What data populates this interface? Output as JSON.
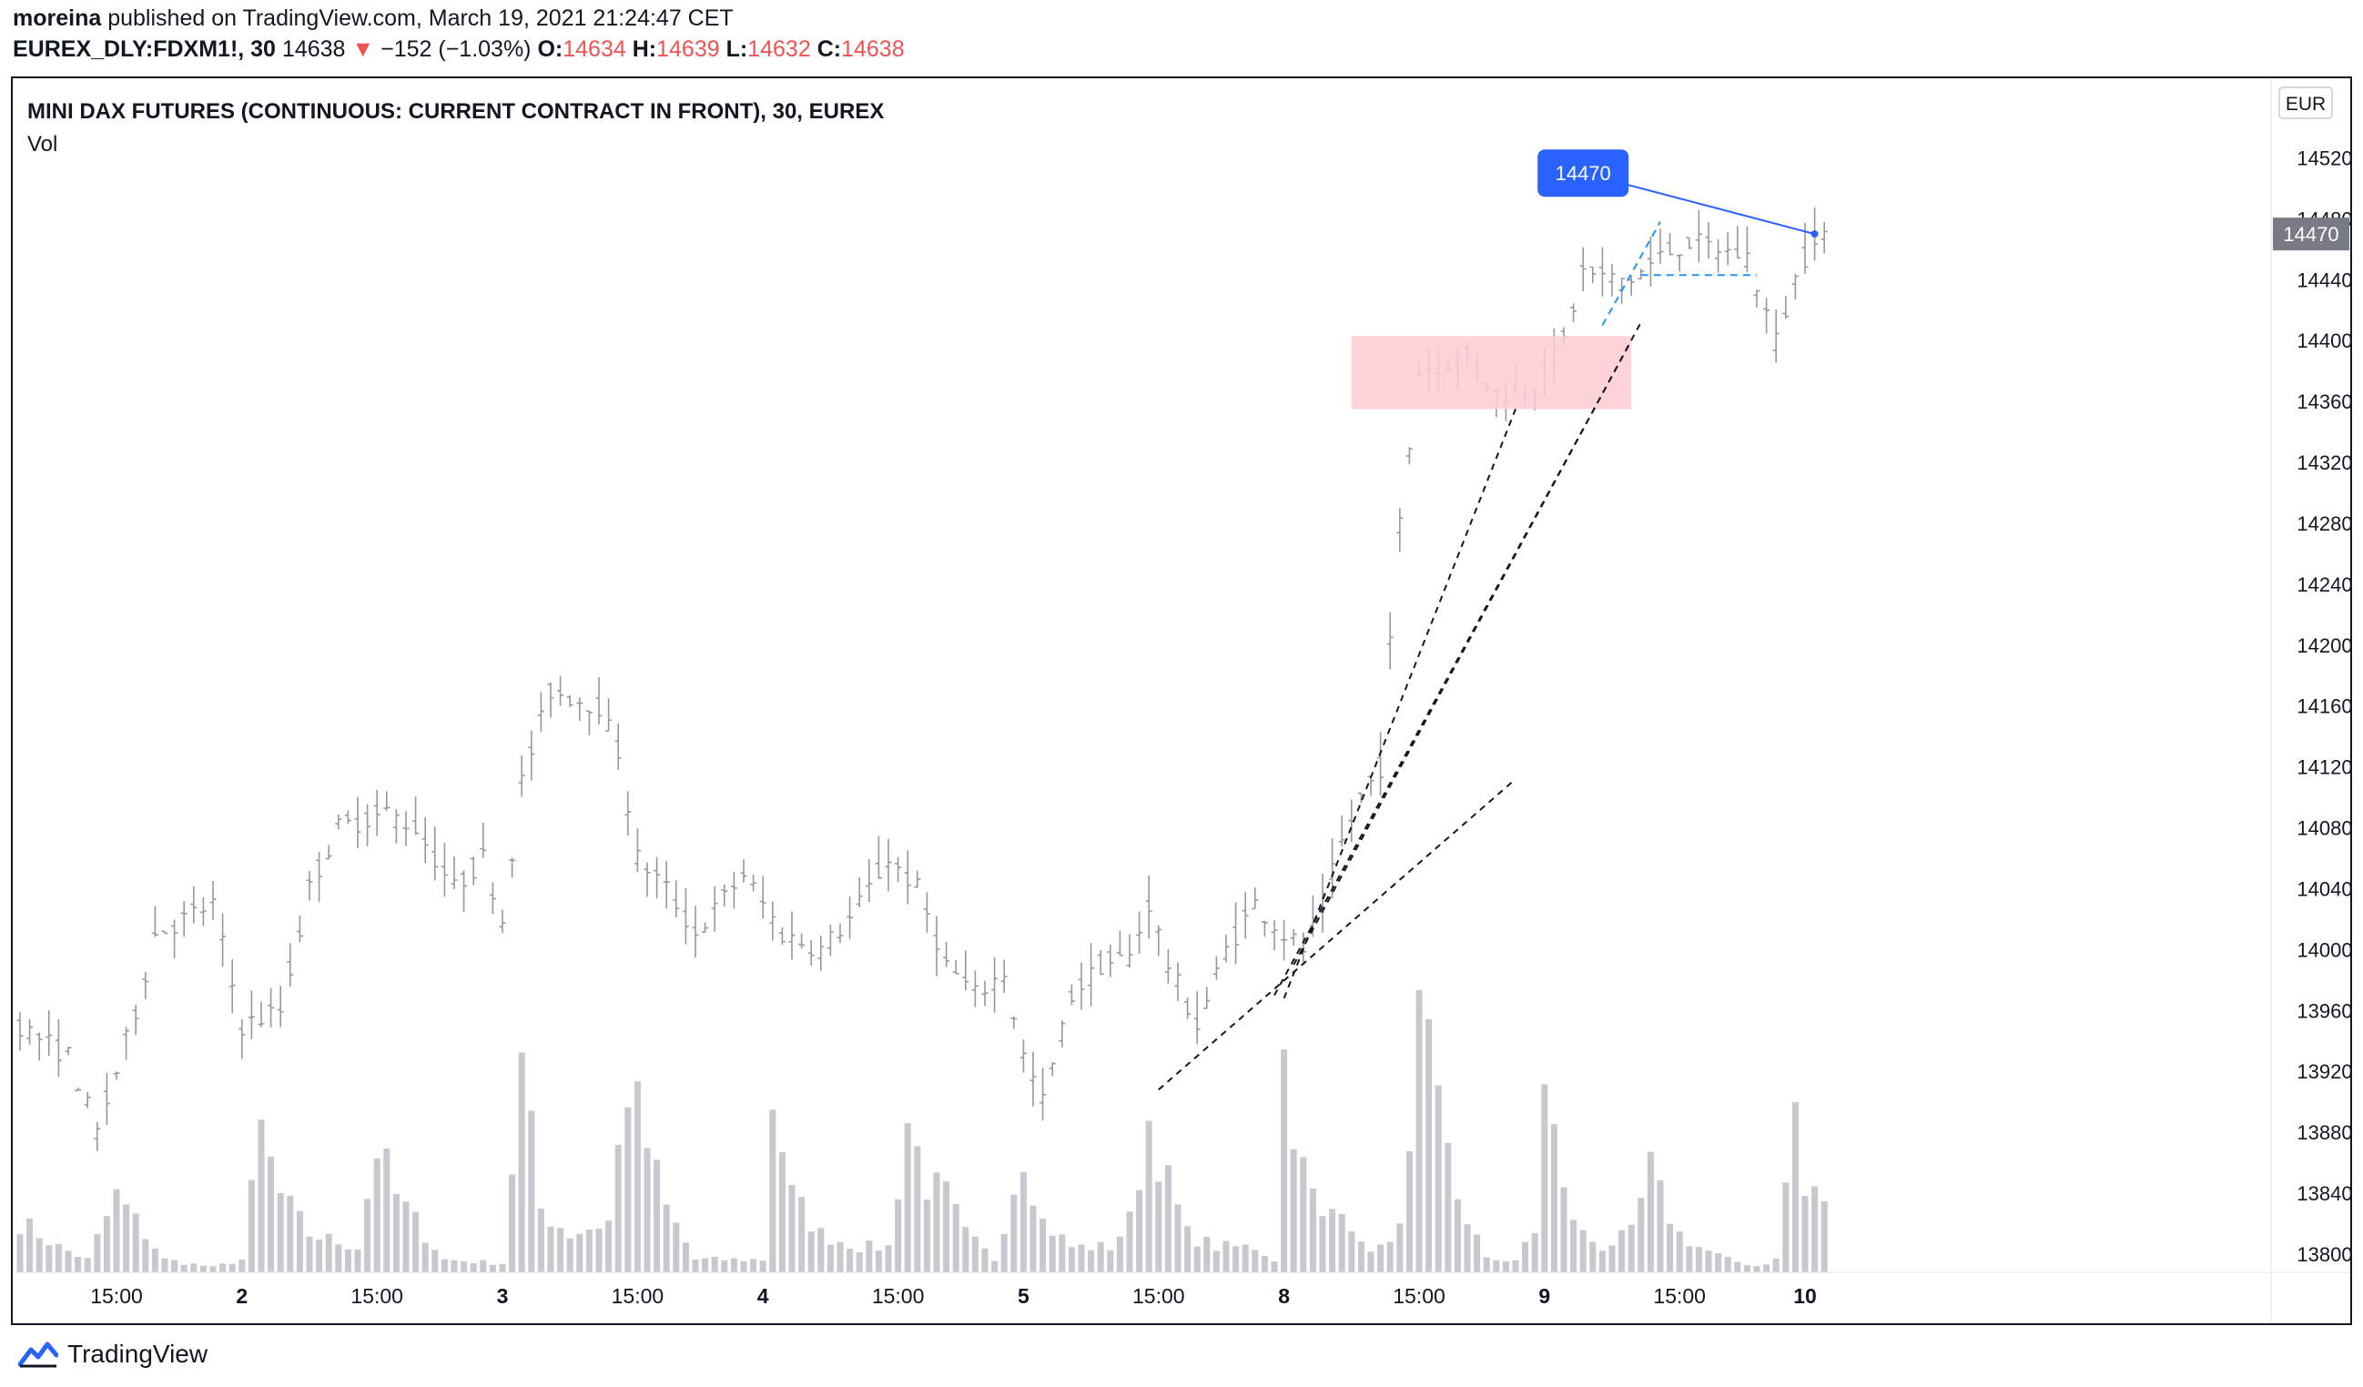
{
  "header": {
    "author": "moreina",
    "published_text": "published on TradingView.com, March 19, 2021 21:24:47 CET",
    "symbol_line": "EUREX_DLY:FDXM1!, 30",
    "last": "14638",
    "change": "−152 (−1.03%)",
    "o_label": "O:",
    "o": "14634",
    "h_label": "H:",
    "h": "14639",
    "l_label": "L:",
    "l": "14632",
    "c_label": "C:",
    "c": "14638"
  },
  "footer": {
    "brand": "TradingView"
  },
  "colors": {
    "down": "#ef5350",
    "accent": "#2962ff",
    "bar": "#9598a1",
    "volume": "#c8c9ce",
    "zone": "#ffcdd2"
  },
  "chart_data": {
    "type": "ohlc",
    "title": "MINI DAX FUTURES (CONTINUOUS: CURRENT CONTRACT IN FRONT), 30, EUREX",
    "volume_label": "Vol",
    "currency": "EUR",
    "ylim": [
      13800,
      14540
    ],
    "y_ticks": [
      14520,
      14480,
      14440,
      14400,
      14360,
      14320,
      14280,
      14240,
      14200,
      14160,
      14120,
      14080,
      14040,
      14000,
      13960,
      13920,
      13880,
      13840,
      13800
    ],
    "last_price_label": "14470",
    "callout_label": "14470",
    "x_tick_labels": [
      "15:00",
      "2",
      "15:00",
      "3",
      "15:00",
      "4",
      "15:00",
      "5",
      "15:00",
      "8",
      "15:00",
      "9",
      "15:00",
      "10"
    ],
    "x_tick_bar_index": [
      10,
      23,
      37,
      50,
      64,
      77,
      91,
      104,
      118,
      131,
      145,
      158,
      172,
      185
    ],
    "price_keypoints": [
      [
        0,
        13950
      ],
      [
        5,
        13930
      ],
      [
        8,
        13880
      ],
      [
        12,
        13960
      ],
      [
        14,
        14010
      ],
      [
        20,
        14030
      ],
      [
        23,
        13950
      ],
      [
        27,
        13960
      ],
      [
        30,
        14040
      ],
      [
        33,
        14080
      ],
      [
        38,
        14090
      ],
      [
        41,
        14080
      ],
      [
        45,
        14040
      ],
      [
        48,
        14060
      ],
      [
        50,
        14020
      ],
      [
        52,
        14110
      ],
      [
        55,
        14170
      ],
      [
        60,
        14160
      ],
      [
        62,
        14130
      ],
      [
        64,
        14060
      ],
      [
        67,
        14040
      ],
      [
        70,
        14010
      ],
      [
        75,
        14050
      ],
      [
        79,
        14010
      ],
      [
        83,
        14000
      ],
      [
        86,
        14020
      ],
      [
        90,
        14060
      ],
      [
        93,
        14040
      ],
      [
        96,
        13990
      ],
      [
        99,
        13970
      ],
      [
        102,
        13985
      ],
      [
        104,
        13930
      ],
      [
        106,
        13900
      ],
      [
        109,
        13970
      ],
      [
        112,
        13990
      ],
      [
        115,
        13995
      ],
      [
        117,
        14030
      ],
      [
        119,
        13990
      ],
      [
        122,
        13950
      ],
      [
        125,
        14000
      ],
      [
        128,
        14030
      ],
      [
        131,
        14010
      ],
      [
        133,
        14000
      ],
      [
        135,
        14030
      ],
      [
        137,
        14070
      ],
      [
        139,
        14100
      ],
      [
        141,
        14120
      ],
      [
        143,
        14280
      ],
      [
        145,
        14380
      ],
      [
        147,
        14385
      ],
      [
        150,
        14390
      ],
      [
        153,
        14365
      ],
      [
        155,
        14365
      ],
      [
        157,
        14370
      ],
      [
        160,
        14400
      ],
      [
        162,
        14445
      ],
      [
        165,
        14440
      ],
      [
        167,
        14440
      ],
      [
        170,
        14455
      ],
      [
        173,
        14465
      ],
      [
        176,
        14460
      ],
      [
        179,
        14455
      ],
      [
        182,
        14400
      ],
      [
        184,
        14440
      ],
      [
        186,
        14470
      ]
    ],
    "volume_profile": [
      [
        0,
        4
      ],
      [
        4,
        2
      ],
      [
        7,
        1
      ],
      [
        10,
        6
      ],
      [
        13,
        3
      ],
      [
        15,
        1
      ],
      [
        20,
        0.4
      ],
      [
        23,
        1
      ],
      [
        25,
        11
      ],
      [
        27,
        6
      ],
      [
        30,
        3
      ],
      [
        35,
        2
      ],
      [
        37,
        10
      ],
      [
        39,
        6
      ],
      [
        41,
        4
      ],
      [
        44,
        1
      ],
      [
        50,
        0.7
      ],
      [
        52,
        16
      ],
      [
        54,
        5
      ],
      [
        57,
        3
      ],
      [
        61,
        4
      ],
      [
        63,
        15
      ],
      [
        65,
        10
      ],
      [
        67,
        5
      ],
      [
        70,
        1
      ],
      [
        74,
        1
      ],
      [
        77,
        1
      ],
      [
        78,
        14
      ],
      [
        80,
        6
      ],
      [
        83,
        3
      ],
      [
        87,
        2
      ],
      [
        90,
        2
      ],
      [
        92,
        12
      ],
      [
        94,
        7
      ],
      [
        96,
        6
      ],
      [
        98,
        3
      ],
      [
        101,
        1
      ],
      [
        104,
        10
      ],
      [
        106,
        4
      ],
      [
        109,
        2
      ],
      [
        113,
        2
      ],
      [
        115,
        4
      ],
      [
        117,
        12
      ],
      [
        119,
        7
      ],
      [
        121,
        3
      ],
      [
        124,
        2
      ],
      [
        128,
        2
      ],
      [
        130,
        1
      ],
      [
        131,
        17
      ],
      [
        133,
        8
      ],
      [
        135,
        4
      ],
      [
        137,
        6
      ],
      [
        139,
        2
      ],
      [
        142,
        2
      ],
      [
        144,
        8
      ],
      [
        145,
        20
      ],
      [
        147,
        12
      ],
      [
        149,
        6
      ],
      [
        152,
        1
      ],
      [
        155,
        1
      ],
      [
        157,
        3
      ],
      [
        158,
        16
      ],
      [
        160,
        6
      ],
      [
        162,
        3
      ],
      [
        164,
        2
      ],
      [
        167,
        3
      ],
      [
        169,
        8
      ],
      [
        170,
        6
      ],
      [
        172,
        3
      ],
      [
        174,
        2
      ],
      [
        177,
        1
      ],
      [
        180,
        0.5
      ],
      [
        182,
        1
      ],
      [
        184,
        13
      ],
      [
        185,
        6
      ]
    ],
    "volume_max": 20,
    "drawings": [
      {
        "type": "rectangle",
        "name": "supply-zone",
        "x": [
          138,
          167
        ],
        "y": [
          14355,
          14403
        ]
      },
      {
        "type": "trendline",
        "name": "trendline-1",
        "x": [
          118,
          155
        ],
        "y": [
          13908,
          14112
        ]
      },
      {
        "type": "trendline",
        "name": "trendline-2",
        "x": [
          130,
          167
        ],
        "y": [
          13970,
          14400
        ]
      },
      {
        "type": "trendline",
        "name": "trendline-3",
        "x": [
          131,
          155
        ],
        "y": [
          13968,
          14355
        ]
      },
      {
        "type": "trendline",
        "name": "trendline-4",
        "x": [
          132,
          168
        ],
        "y": [
          13990,
          14412
        ]
      },
      {
        "type": "blue-dashed",
        "name": "projection-up",
        "x": [
          164,
          170
        ],
        "y": [
          14410,
          14478
        ]
      },
      {
        "type": "blue-dashed",
        "name": "projection-flat",
        "x": [
          168,
          180
        ],
        "y": [
          14443,
          14443
        ]
      },
      {
        "type": "callout-line",
        "name": "callout-line",
        "x": [
          162,
          186
        ],
        "y": [
          14510,
          14470
        ]
      }
    ]
  }
}
